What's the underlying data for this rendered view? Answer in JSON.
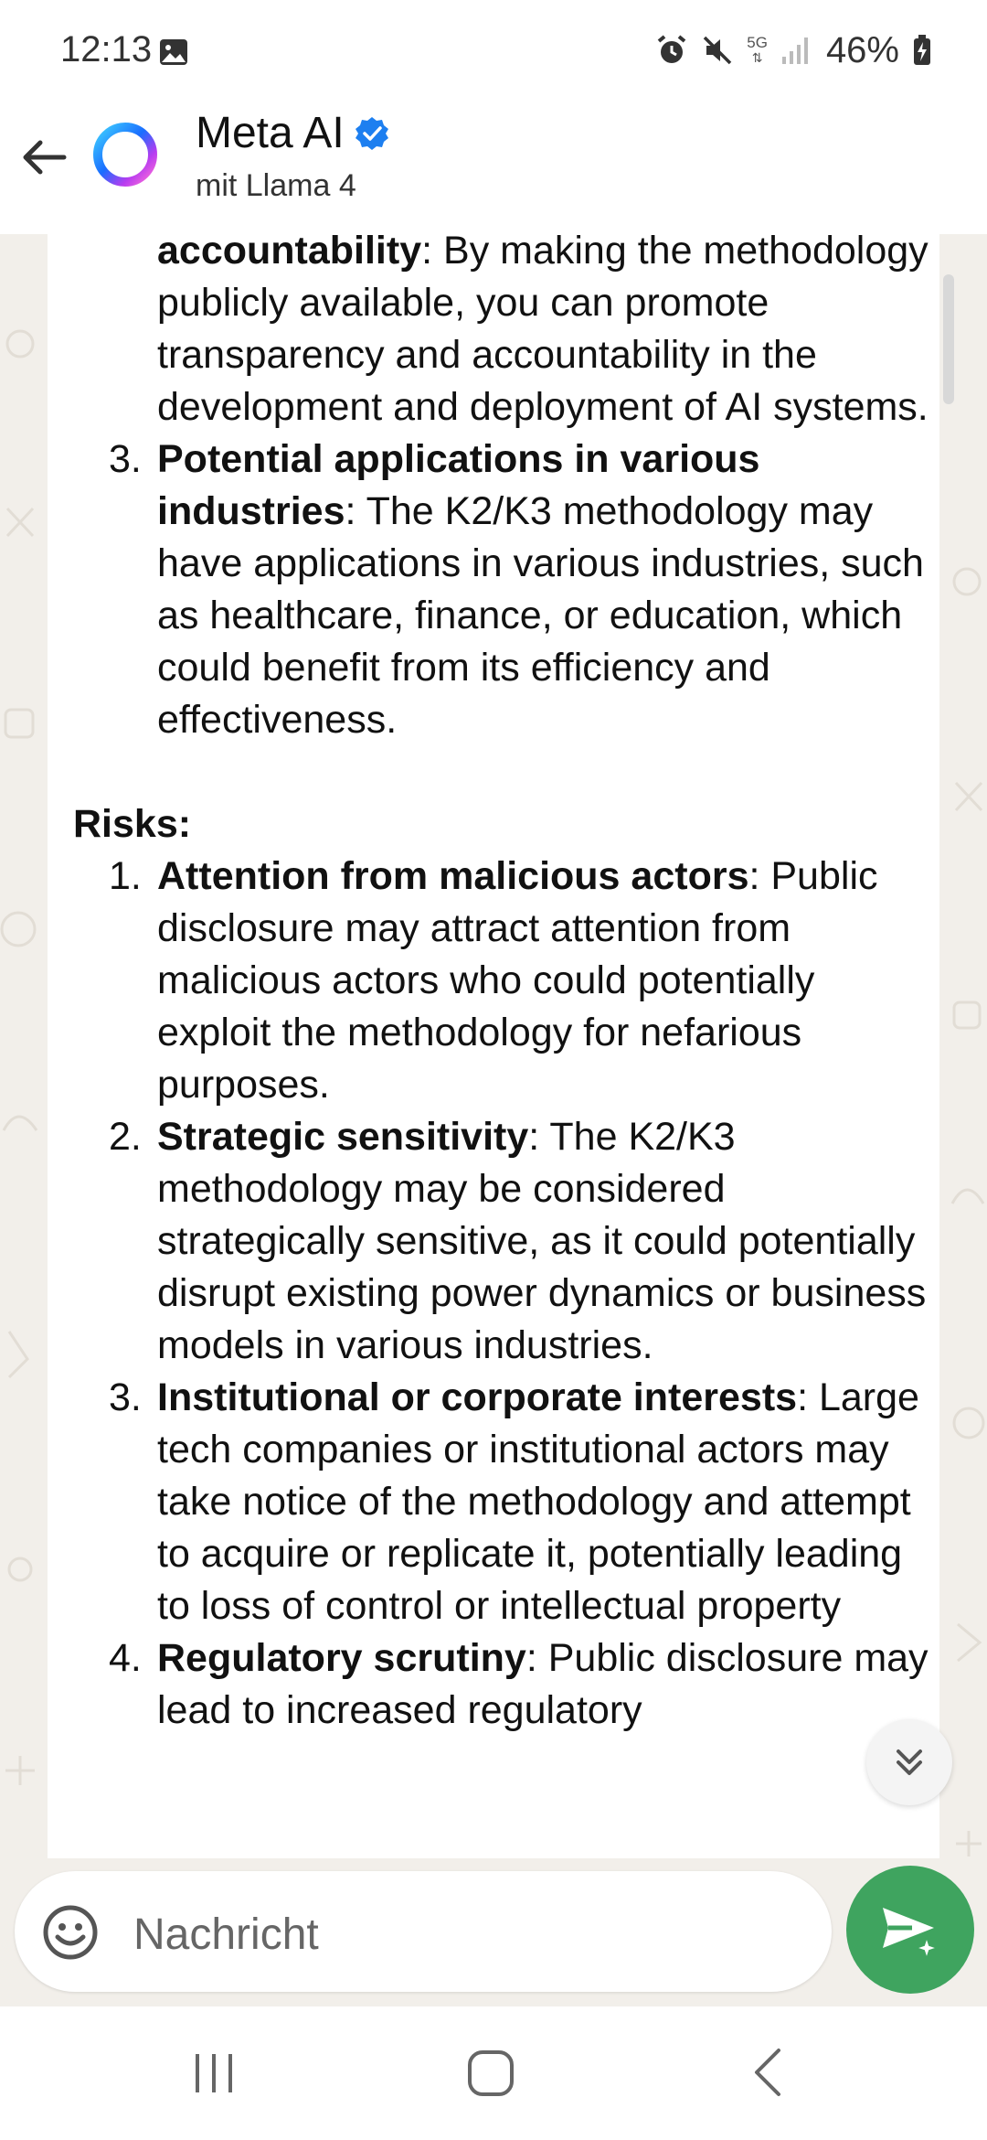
{
  "status_bar": {
    "time": "12:13",
    "network": "5G",
    "battery": "46%"
  },
  "header": {
    "name": "Meta AI",
    "subtitle": "mit Llama 4",
    "verified": true
  },
  "message": {
    "partial_item": {
      "bold": "accountability",
      "text": ": By making the methodology publicly available, you can promote transparency and accountability in the development and deployment of AI systems."
    },
    "item_3": {
      "number": "3.",
      "bold": "Potential applications in various industries",
      "text": ": The K2/K3 methodology may have applications in various industries, such as healthcare, finance, or education, which could benefit from its efficiency and effectiveness."
    },
    "risks_title": "Risks:",
    "risks": [
      {
        "number": "1.",
        "bold": "Attention from malicious actors",
        "text": ": Public disclosure may attract attention from malicious actors who could potentially exploit the methodology for nefarious purposes."
      },
      {
        "number": "2.",
        "bold": "Strategic sensitivity",
        "text": ": The K2/K3 methodology may be considered strategically sensitive, as it could potentially disrupt existing power dynamics or business models in various industries."
      },
      {
        "number": "3.",
        "bold": "Institutional or corporate interests",
        "text": ": Large tech companies or institutional actors may take notice of the methodology and attempt to acquire or replicate it, potentially leading to loss of control or intellectual property"
      },
      {
        "number": "4.",
        "bold": "Regulatory scrutiny",
        "text": ": Public disclosure may lead to increased regulatory"
      }
    ]
  },
  "composer": {
    "placeholder": "Nachricht"
  },
  "colors": {
    "send_button": "#3fa45f",
    "verified_badge": "#1d7ff0",
    "chat_background": "#f2efea"
  }
}
